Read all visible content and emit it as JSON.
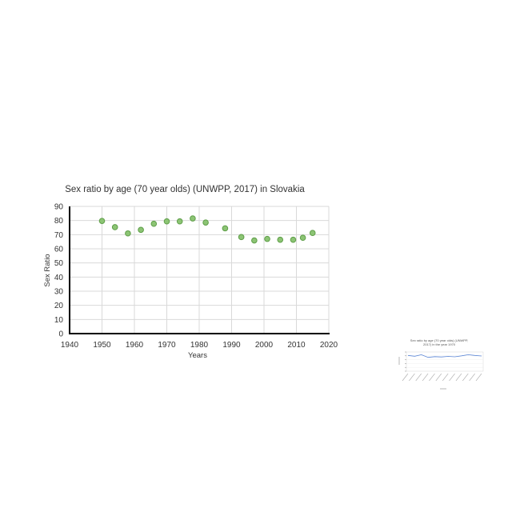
{
  "chart_data": [
    {
      "type": "scatter",
      "title": "Sex ratio by age (70 year olds) (UNWPP, 2017) in Slovakia",
      "xlabel": "Years",
      "ylabel": "Sex Ratio",
      "xlim": [
        1940,
        2020
      ],
      "ylim": [
        0,
        90
      ],
      "x_ticks": [
        1940,
        1950,
        1960,
        1970,
        1980,
        1990,
        2000,
        2010,
        2020
      ],
      "y_ticks": [
        0,
        10,
        20,
        30,
        40,
        50,
        60,
        70,
        80,
        90
      ],
      "grid": true,
      "marker_color": "#8cc474",
      "marker_edge_color": "#5e9e48",
      "points": [
        {
          "x": 1950,
          "y": 79.7
        },
        {
          "x": 1954,
          "y": 75.3
        },
        {
          "x": 1958,
          "y": 70.9
        },
        {
          "x": 1962,
          "y": 73.4
        },
        {
          "x": 1966,
          "y": 77.7
        },
        {
          "x": 1970,
          "y": 79.4
        },
        {
          "x": 1974,
          "y": 79.4
        },
        {
          "x": 1978,
          "y": 81.5
        },
        {
          "x": 1982,
          "y": 78.6
        },
        {
          "x": 1988,
          "y": 74.5
        },
        {
          "x": 1993,
          "y": 68.3
        },
        {
          "x": 1997,
          "y": 65.9
        },
        {
          "x": 2001,
          "y": 67.0
        },
        {
          "x": 2005,
          "y": 66.4
        },
        {
          "x": 2009,
          "y": 66.4
        },
        {
          "x": 2012,
          "y": 67.8
        },
        {
          "x": 2015,
          "y": 71.2
        }
      ]
    },
    {
      "type": "line",
      "title_lines": [
        "Sex ratio by age (70 year olds) (UNWPP,",
        "2017) in the year 1970"
      ],
      "line_color": "#5b86d6",
      "ylim": [
        0,
        100
      ],
      "categories": [
        "c1",
        "c2",
        "c3",
        "c4",
        "c5",
        "c6",
        "c7",
        "c8",
        "c9",
        "c10",
        "c11",
        "c12"
      ],
      "values": [
        82,
        78,
        86,
        72,
        76,
        74,
        77,
        75,
        80,
        86,
        82,
        79
      ]
    }
  ]
}
